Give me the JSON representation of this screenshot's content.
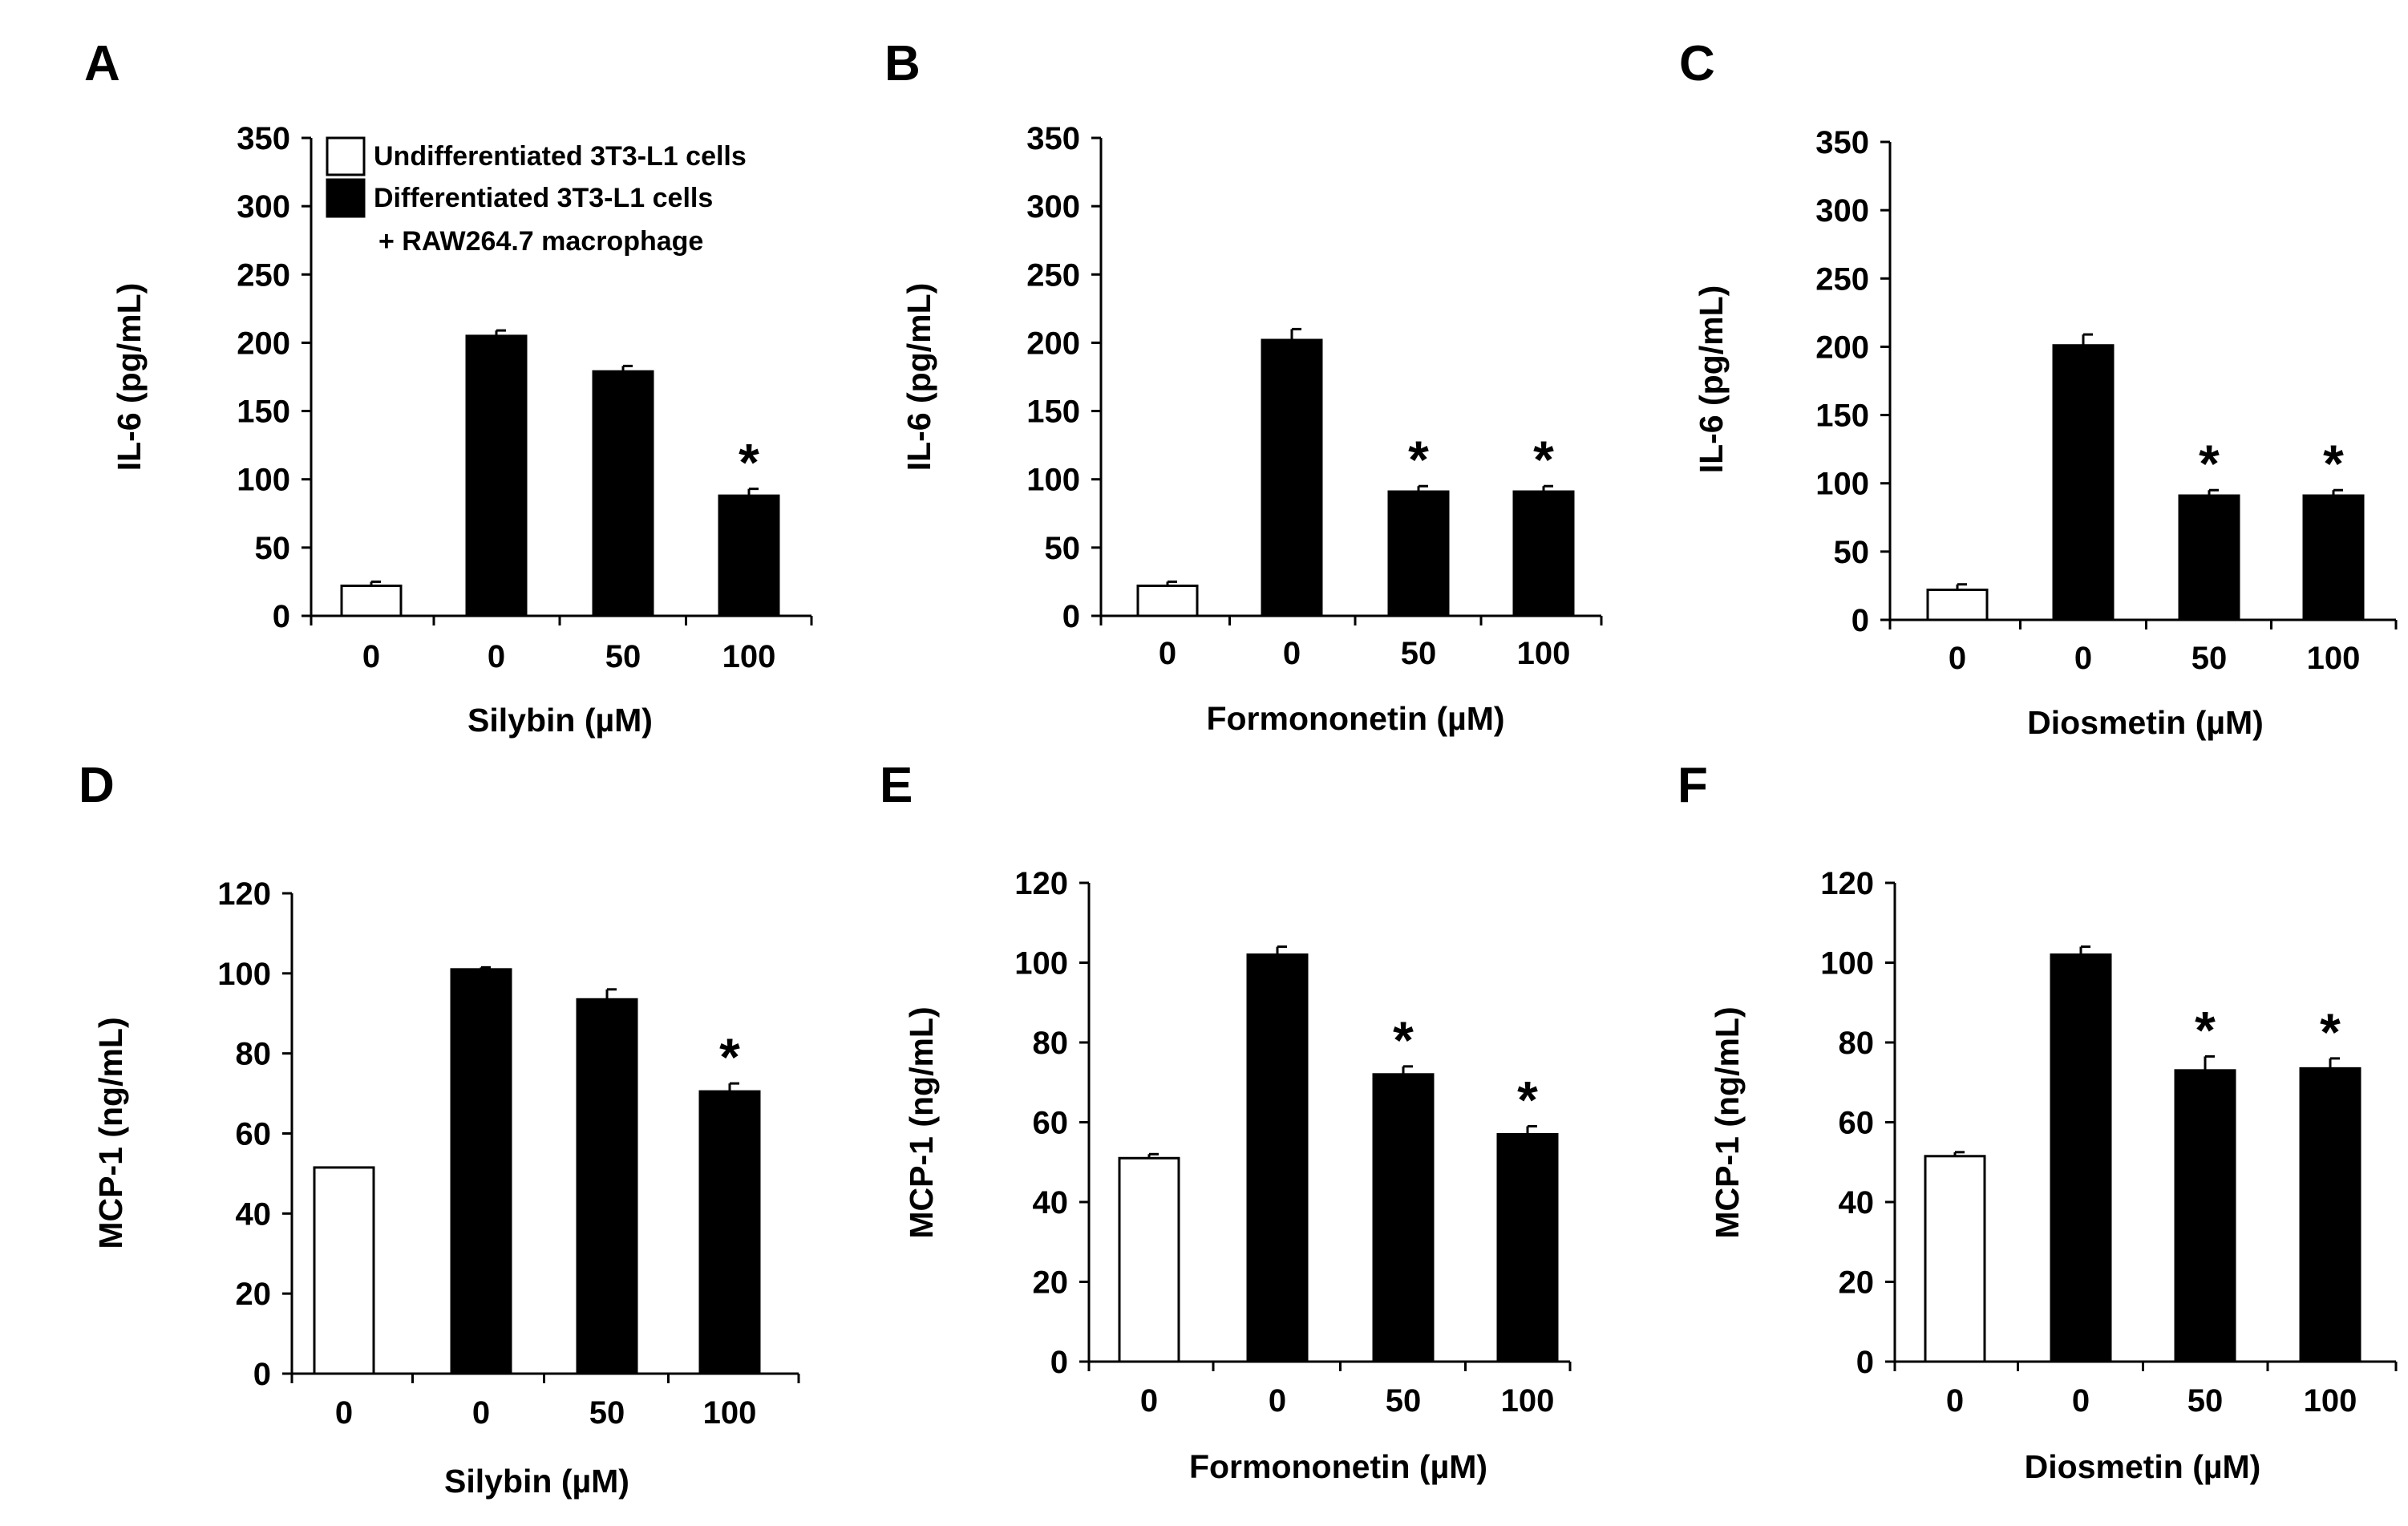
{
  "chart_data": [
    {
      "panel": "A",
      "type": "bar",
      "ylabel": "IL-6 (pg/mL)",
      "xlabel": "Silybin (µM)",
      "ylim": [
        0,
        350
      ],
      "yticks": [
        0,
        50,
        100,
        150,
        200,
        250,
        300,
        350
      ],
      "categories": [
        "0",
        "0",
        "50",
        "100"
      ],
      "values": [
        22,
        205,
        179,
        88
      ],
      "errors": [
        3,
        4,
        4,
        5
      ],
      "fills": [
        "white",
        "black",
        "black",
        "black"
      ],
      "significance": [
        "",
        "",
        "",
        "*"
      ],
      "legend": [
        {
          "fill": "white",
          "label": "Undifferentiated  3T3-L1 cells"
        },
        {
          "fill": "black",
          "label": "Differentiated  3T3-L1 cells",
          "sub": "+ RAW264.7 macrophage"
        }
      ]
    },
    {
      "panel": "B",
      "type": "bar",
      "ylabel": "IL-6 (pg/mL)",
      "xlabel": "Formononetin (µM)",
      "ylim": [
        0,
        350
      ],
      "yticks": [
        0,
        50,
        100,
        150,
        200,
        250,
        300,
        350
      ],
      "categories": [
        "0",
        "0",
        "50",
        "100"
      ],
      "values": [
        22,
        202,
        91,
        91
      ],
      "errors": [
        3,
        8,
        4,
        4
      ],
      "fills": [
        "white",
        "black",
        "black",
        "black"
      ],
      "significance": [
        "",
        "",
        "*",
        "*"
      ]
    },
    {
      "panel": "C",
      "type": "bar",
      "ylabel": "IL-6 (pg/mL)",
      "xlabel": "Diosmetin (µM)",
      "ylim": [
        0,
        350
      ],
      "yticks": [
        0,
        50,
        100,
        150,
        200,
        250,
        300,
        350
      ],
      "categories": [
        "0",
        "0",
        "50",
        "100"
      ],
      "values": [
        22,
        201,
        91,
        91
      ],
      "errors": [
        4,
        8,
        4,
        4
      ],
      "fills": [
        "white",
        "black",
        "black",
        "black"
      ],
      "significance": [
        "",
        "",
        "*",
        "*"
      ]
    },
    {
      "panel": "D",
      "type": "bar",
      "ylabel": "MCP-1 (ng/mL)",
      "xlabel": "Silybin (µM)",
      "ylim": [
        0,
        120
      ],
      "yticks": [
        0,
        20,
        40,
        60,
        80,
        100,
        120
      ],
      "categories": [
        "0",
        "0",
        "50",
        "100"
      ],
      "values": [
        51.5,
        101,
        93.5,
        70.5
      ],
      "errors": [
        0,
        0.5,
        2.5,
        2
      ],
      "fills": [
        "white",
        "black",
        "black",
        "black"
      ],
      "significance": [
        "",
        "",
        "",
        "*"
      ]
    },
    {
      "panel": "E",
      "type": "bar",
      "ylabel": "MCP-1 (ng/mL)",
      "xlabel": "Formononetin (µM)",
      "ylim": [
        0,
        120
      ],
      "yticks": [
        0,
        20,
        40,
        60,
        80,
        100,
        120
      ],
      "categories": [
        "0",
        "0",
        "50",
        "100"
      ],
      "values": [
        51,
        102,
        72,
        57
      ],
      "errors": [
        1,
        2,
        2,
        2
      ],
      "fills": [
        "white",
        "black",
        "black",
        "black"
      ],
      "significance": [
        "",
        "",
        "*",
        "*"
      ]
    },
    {
      "panel": "F",
      "type": "bar",
      "ylabel": "MCP-1 (ng/mL)",
      "xlabel": "Diosmetin (µM)",
      "ylim": [
        0,
        120
      ],
      "yticks": [
        0,
        20,
        40,
        60,
        80,
        100,
        120
      ],
      "categories": [
        "0",
        "0",
        "50",
        "100"
      ],
      "values": [
        51.5,
        102,
        73,
        73.5
      ],
      "errors": [
        1,
        2,
        3.5,
        2.5
      ],
      "fills": [
        "white",
        "black",
        "black",
        "black"
      ],
      "significance": [
        "",
        "",
        "*",
        "*"
      ]
    }
  ]
}
